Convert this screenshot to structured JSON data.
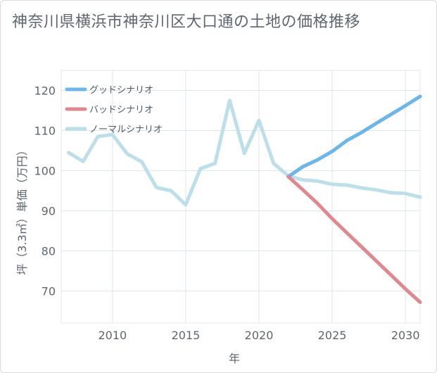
{
  "title": "神奈川県横浜市神奈川区大口通の土地の価格推移",
  "chart_data": {
    "type": "line",
    "title": "神奈川県横浜市神奈川区大口通の土地の価格推移",
    "xlabel": "年",
    "ylabel": "坪（3.3㎡）単価（万円）",
    "xlim": [
      2006.5,
      2031
    ],
    "ylim": [
      62,
      125
    ],
    "x_ticks": [
      2010,
      2015,
      2020,
      2025,
      2030
    ],
    "y_ticks": [
      70,
      80,
      90,
      100,
      110,
      120
    ],
    "grid": true,
    "legend_position": "top-left",
    "series": [
      {
        "name": "グッドシナリオ",
        "color": "#6cb6ea",
        "x": [
          2022,
          2023,
          2024,
          2025,
          2026,
          2027,
          2028,
          2029,
          2030,
          2031
        ],
        "y": [
          98.5,
          101.0,
          102.7,
          104.8,
          107.5,
          109.5,
          111.8,
          114.0,
          116.2,
          118.5
        ]
      },
      {
        "name": "バッドシナリオ",
        "color": "#de8990",
        "x": [
          2022,
          2023,
          2024,
          2025,
          2026,
          2027,
          2028,
          2029,
          2030,
          2031
        ],
        "y": [
          98.5,
          95.2,
          91.8,
          88.0,
          84.5,
          81.0,
          77.5,
          74.0,
          70.5,
          67.2
        ]
      },
      {
        "name": "ノーマルシナリオ",
        "color": "#bcdfea",
        "x": [
          2007,
          2008,
          2009,
          2010,
          2011,
          2012,
          2013,
          2014,
          2015,
          2016,
          2017,
          2018,
          2019,
          2020,
          2021,
          2022,
          2023,
          2024,
          2025,
          2026,
          2027,
          2028,
          2029,
          2030,
          2031
        ],
        "y": [
          104.5,
          102.3,
          108.5,
          109.0,
          104.2,
          102.2,
          95.8,
          95.0,
          91.5,
          100.5,
          101.8,
          117.5,
          104.3,
          112.5,
          101.8,
          98.7,
          97.7,
          97.4,
          96.6,
          96.4,
          95.7,
          95.2,
          94.5,
          94.3,
          93.4
        ]
      }
    ]
  }
}
